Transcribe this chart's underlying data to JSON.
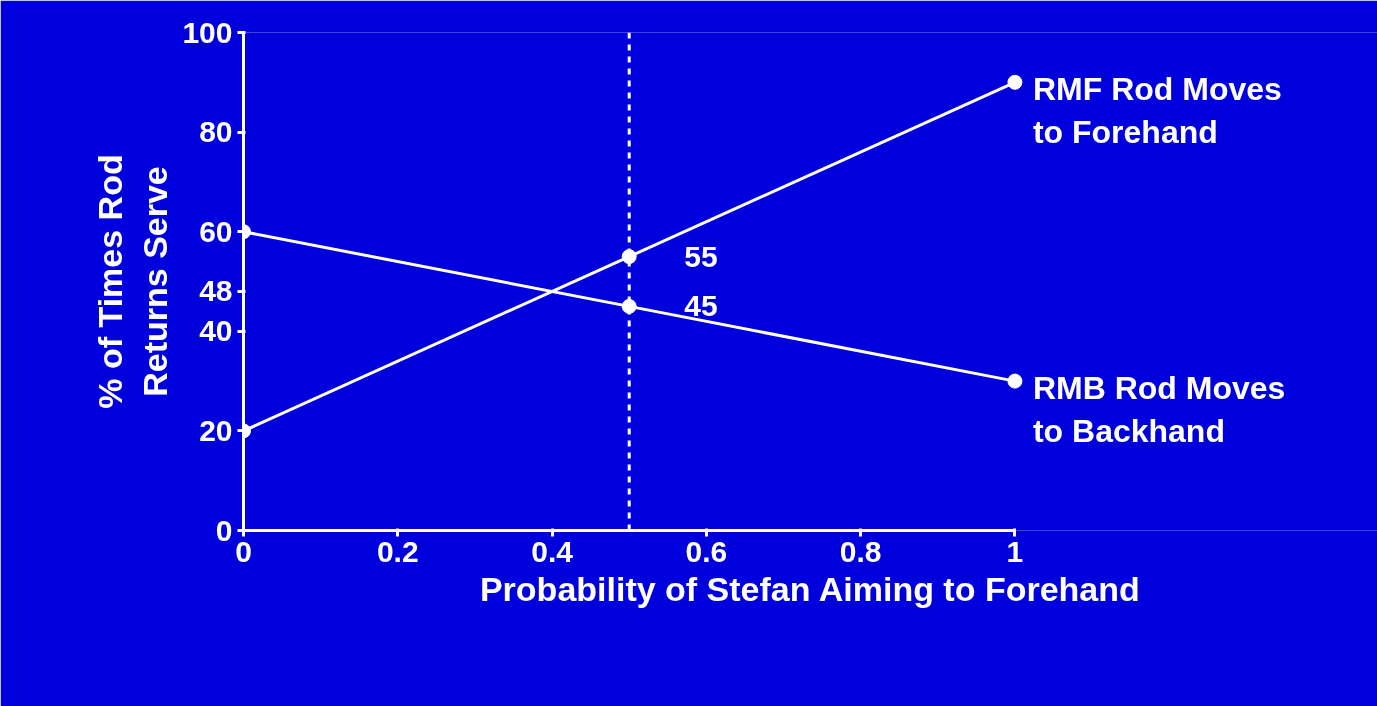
{
  "chart_data": {
    "type": "line",
    "xlabel": "Probability of Stefan Aiming to Forehand",
    "ylabel": "% of Times Rod\nReturns Serve",
    "x": [
      0,
      0.5,
      1
    ],
    "series": [
      {
        "name": "RMF Rod Moves to Forehand",
        "color": "#ffffff",
        "values": [
          20,
          55,
          90
        ],
        "value_labels": [
          null,
          "55",
          null
        ]
      },
      {
        "name": "RMB Rod Moves to Backhand",
        "color": "#ffffff",
        "values": [
          60,
          45,
          30
        ],
        "value_labels": [
          null,
          "45",
          null
        ]
      }
    ],
    "xlim": [
      0,
      1
    ],
    "xticks": [
      0,
      0.2,
      0.4,
      0.6,
      0.8,
      1
    ],
    "ylim": [
      0,
      100
    ],
    "yticks": [
      0,
      20,
      40,
      48,
      60,
      80,
      100
    ],
    "ref_lines": [
      {
        "axis": "x",
        "value": 0.5,
        "color": "#ffffff",
        "line_style": "dashed"
      }
    ],
    "marker": "circle",
    "line_style": "solid",
    "grid": false
  }
}
